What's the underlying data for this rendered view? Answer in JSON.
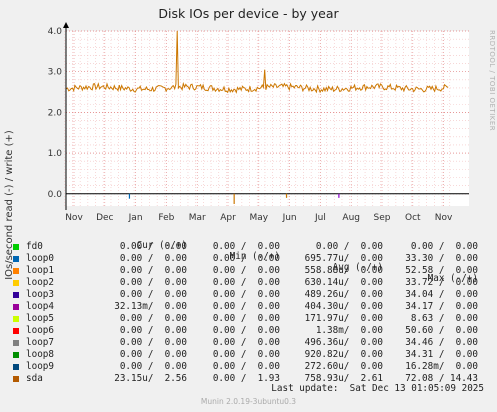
{
  "title": "Disk IOs per device - by year",
  "side_label": "RRDTOOL / TOBI OETIKER",
  "footer": "Munin 2.0.19-3ubuntu0.3",
  "last_update": "Last update:  Sat Dec 13 01:05:09 2025",
  "chart_data": {
    "type": "line",
    "ylabel": "IOs/second read (-) / write (+)",
    "ylim": [
      -0.3,
      4.0
    ],
    "yticks": [
      "0.0",
      "1.0",
      "2.0",
      "3.0",
      "4.0"
    ],
    "xticks": [
      "Nov",
      "Dec",
      "Jan",
      "Feb",
      "Mar",
      "Apr",
      "May",
      "Jun",
      "Jul",
      "Aug",
      "Sep",
      "Oct",
      "Nov"
    ],
    "grid": true,
    "series": [
      {
        "name": "sda",
        "color": "#cc7700",
        "baseline": 2.6,
        "noise": 0.08,
        "spikes": [
          {
            "month": 3.35,
            "value": 4.0
          },
          {
            "month": 6.2,
            "value": 3.05
          }
        ]
      },
      {
        "name": "loop0",
        "color": "#0066b3",
        "read_dips": [
          {
            "month": 1.8,
            "value": -0.12
          }
        ]
      },
      {
        "name": "loop4",
        "color": "#8c00cc",
        "read_dips": [
          {
            "month": 8.6,
            "value": -0.1
          }
        ]
      },
      {
        "name": "sda",
        "color": "#cc7700",
        "read_dips": [
          {
            "month": 5.2,
            "value": -0.25
          },
          {
            "month": 6.9,
            "value": -0.1
          }
        ]
      }
    ]
  },
  "legend": {
    "headers": [
      "Cur (-/+)",
      "Min (-/+)",
      "Avg (-/+)",
      "Max (-/+)"
    ],
    "rows": [
      {
        "name": "fd0",
        "color": "#00cc00",
        "cur": "0.00 /  0.00",
        "min": "0.00 /  0.00",
        "avg": "0.00 /  0.00",
        "max": "0.00 /  0.00"
      },
      {
        "name": "loop0",
        "color": "#0066b3",
        "cur": "0.00 /  0.00",
        "min": "0.00 /  0.00",
        "avg": "695.77u/  0.00",
        "max": "33.30 /  0.00"
      },
      {
        "name": "loop1",
        "color": "#ff8000",
        "cur": "0.00 /  0.00",
        "min": "0.00 /  0.00",
        "avg": "558.88u/  0.00",
        "max": "52.58 /  0.00"
      },
      {
        "name": "loop2",
        "color": "#ffcc00",
        "cur": "0.00 /  0.00",
        "min": "0.00 /  0.00",
        "avg": "630.14u/  0.00",
        "max": "33.72 /  0.00"
      },
      {
        "name": "loop3",
        "color": "#330099",
        "cur": "0.00 /  0.00",
        "min": "0.00 /  0.00",
        "avg": "489.26u/  0.00",
        "max": "34.04 /  0.00"
      },
      {
        "name": "loop4",
        "color": "#990099",
        "cur": "32.13m/  0.00",
        "min": "0.00 /  0.00",
        "avg": "404.30u/  0.00",
        "max": "34.17 /  0.00"
      },
      {
        "name": "loop5",
        "color": "#ccff00",
        "cur": "0.00 /  0.00",
        "min": "0.00 /  0.00",
        "avg": "171.97u/  0.00",
        "max": "8.63 /  0.00"
      },
      {
        "name": "loop6",
        "color": "#ff0000",
        "cur": "0.00 /  0.00",
        "min": "0.00 /  0.00",
        "avg": "1.38m/  0.00",
        "max": "50.60 /  0.00"
      },
      {
        "name": "loop7",
        "color": "#808080",
        "cur": "0.00 /  0.00",
        "min": "0.00 /  0.00",
        "avg": "496.36u/  0.00",
        "max": "34.46 /  0.00"
      },
      {
        "name": "loop8",
        "color": "#008f00",
        "cur": "0.00 /  0.00",
        "min": "0.00 /  0.00",
        "avg": "920.82u/  0.00",
        "max": "34.31 /  0.00"
      },
      {
        "name": "loop9",
        "color": "#00487d",
        "cur": "0.00 /  0.00",
        "min": "0.00 /  0.00",
        "avg": "272.60u/  0.00",
        "max": "16.28m/  0.00"
      },
      {
        "name": "sda",
        "color": "#b35a00",
        "cur": "23.15u/  2.56",
        "min": "0.00 /  1.93",
        "avg": "758.93u/  2.61",
        "max": "72.08 / 14.43"
      }
    ]
  }
}
